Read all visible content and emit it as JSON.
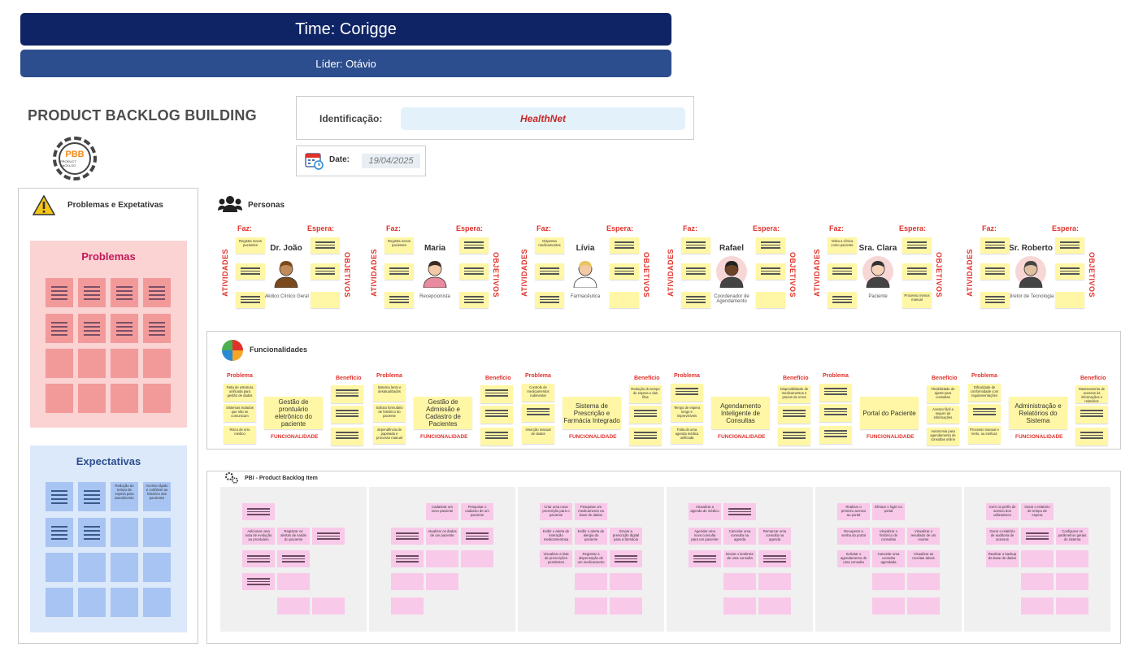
{
  "header": {
    "title": "Time: Corigge",
    "leader": "Líder: Otávio"
  },
  "pbb": {
    "title": "PRODUCT BACKLOG BUILDING",
    "logo_text": "PBB",
    "logo_sub": "PRODUCT BACKLOG"
  },
  "identification": {
    "label": "Identificação:",
    "value": "HealthNet"
  },
  "date": {
    "label": "Date:",
    "value": "19/04/2025"
  },
  "left_panel": {
    "title": "Problemas e Expetativas",
    "problems_title": "Problemas",
    "expectations_title": "Expectativas",
    "expectation_notes": [
      "Redução do tempo de espera para atendimento",
      "Acesso rápido e confiável ao histórico dos pacientes"
    ]
  },
  "personas": {
    "title": "Personas",
    "faz_label": "Faz:",
    "espera_label": "Espera:",
    "atividades_label": "ATIVIDADES",
    "objetivos_label": "OBJETIVOS",
    "items": [
      {
        "name": "Dr. João",
        "role": "Médico Clínico Geral",
        "notes": [
          "Registra novos pacientes"
        ]
      },
      {
        "name": "Maria",
        "role": "Recepcionista",
        "notes": [
          "Registra novos pacientes"
        ]
      },
      {
        "name": "Lívia",
        "role": "Farmacêutica",
        "notes": [
          "Dispensa medicamentos"
        ]
      },
      {
        "name": "Rafael",
        "role": "Coordenador de Agendamento",
        "notes": []
      },
      {
        "name": "Sra. Clara",
        "role": "Paciente",
        "notes": [
          "Visita a clínica como paciente",
          "Processo menos manual"
        ]
      },
      {
        "name": "Sr. Roberto",
        "role": "Diretor de Tecnologia",
        "notes": []
      }
    ]
  },
  "funcionalidades": {
    "title": "Funcionalidades",
    "problema_label": "Problema",
    "beneficio_label": "Benefício",
    "func_label": "FUNCIONALIDADE",
    "items": [
      {
        "name": "Gestão de prontuário eletrônico do paciente",
        "problems": [
          "Falta de estrutura unificada para gestão de dados",
          "Sistemas isolados que não se comunicam",
          "Risco de erro médico"
        ],
        "benefits": []
      },
      {
        "name": "Gestão de Admissão e Cadastro de Pacientes",
        "problems": [
          "Sistema lento e desatualizados",
          "Solicita formulário de histórico do paciente",
          "dependência de papelada e processo manual"
        ],
        "benefits": []
      },
      {
        "name": "Sistema de Prescrição e Farmácia Integrado",
        "problems": [
          "Controle de medicamentos rudimentar",
          "",
          "Inserção manual de dados"
        ],
        "benefits": [
          "Redução do tempo de espera e das filas"
        ]
      },
      {
        "name": "Agendamento Inteligente de Consultas",
        "problems": [
          "",
          "Tempo de espera longo e imprevisíveis",
          "Falta de uma agenda médica unificada"
        ],
        "benefits": [
          "Disponibilidade de medicamentos e prazos de erros"
        ]
      },
      {
        "name": "Portal do Paciente",
        "problems": [],
        "benefits": [
          "Flexibilidade de ajuste para consultas",
          "Acesso fácil e seguro às informações",
          "Autonomia para agendamento de consultas online"
        ]
      },
      {
        "name": "Administração e Relatórios do Sistema",
        "problems": [
          "Dificuldade de conformidade com regulamentações",
          "",
          "Processo manual e lento, ou ineficaz"
        ],
        "benefits": [
          "Rastreamento de acessos às informações e relatórios"
        ]
      }
    ]
  },
  "pbi": {
    "title": "PBI - Product Backlog Item",
    "cols": [
      {
        "notes": [
          "Adicionar uma nota de evolução ao prontuário",
          "Registrar os alertas de saúde do paciente"
        ]
      },
      {
        "notes": [
          "Cadastrar um novo paciente",
          "Pesquisar o cadastro de um paciente",
          "Atualizar os dados de um paciente"
        ]
      },
      {
        "notes": [
          "Criar uma nova prescrição para o paciente",
          "Pesquisar um medicamento na base de dados",
          "Exibir o alerta de interação medicamentosa",
          "Exibir o alerta de alergia do paciente",
          "Enviar a prescrição digital para a farmácia",
          "Visualizar a lista de prescrições pendentes",
          "Registrar a dispensação de um medicamento"
        ]
      },
      {
        "notes": [
          "Visualizar a agenda de médico",
          "Agendar uma nova consulta para um paciente",
          "Cancelar uma consulta na agenda",
          "Remarcar uma consulta na agenda",
          "Enviar o lembrete de uma consulta"
        ]
      },
      {
        "notes": [
          "Realizar o primeiro acesso ao portal",
          "Efetuar o login no portal",
          "Recuperar a senha do portal",
          "Visualizar o histórico de consultas",
          "Visualizar o resultado de um exame",
          "Solicitar o agendamento de uma consulta",
          "Cancelar uma consulta agendada",
          "Visualizar as receitas ativas"
        ]
      },
      {
        "notes": [
          "Gerir os perfis de acesso dos utilizadores",
          "Gerar o relatório de tempo de espera",
          "Gerar o relatório de auditoria de acessos",
          "Configurar os parâmetros gerais do sistema",
          "Realizar o backup da base de dados"
        ]
      }
    ]
  },
  "colors": {
    "navy": "#0f2464",
    "blue": "#2c4d8e",
    "red_label": "#e0322b",
    "sticky_yellow": "#fff7a6",
    "sticky_pink": "#f9c9ea",
    "problem_red": "#f29a9a",
    "expect_blue": "#a8c4f2"
  }
}
